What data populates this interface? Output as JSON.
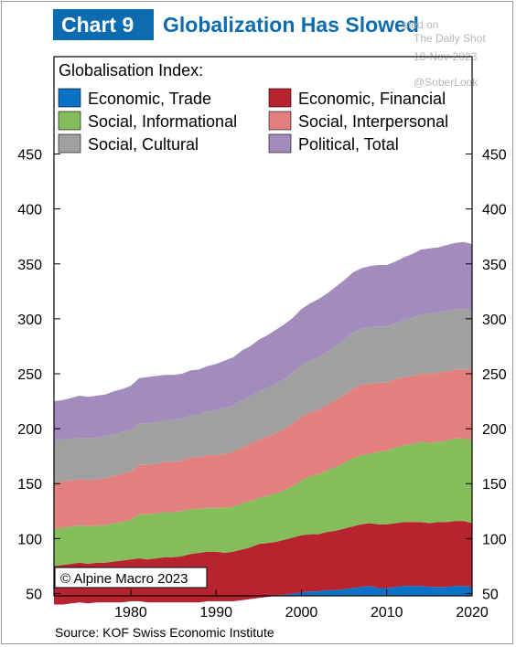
{
  "header": {
    "badge": "Chart 9",
    "title": "Globalization Has Slowed"
  },
  "watermark": {
    "line1": "sted on",
    "line2": "The Daily Shot",
    "line3": "18-Nov-2023",
    "line4": "@SoberLook"
  },
  "source": "Source: KOF Swiss Economic Institute",
  "copyright": "© Alpine Macro 2023",
  "chart_data": {
    "type": "area",
    "stacked": true,
    "title": "Globalization Has Slowed",
    "legend_title": "Globalisation Index:",
    "legend_position": "top-left",
    "grid": false,
    "xlim": [
      1971,
      2020
    ],
    "ylim": [
      0,
      450
    ],
    "x_ticks": [
      1980,
      1990,
      2000,
      2010,
      2020
    ],
    "y_ticks": [
      50,
      100,
      150,
      200,
      250,
      300,
      350,
      400,
      450
    ],
    "x": [
      1971,
      1972,
      1973,
      1974,
      1975,
      1976,
      1977,
      1978,
      1979,
      1980,
      1981,
      1982,
      1983,
      1984,
      1985,
      1986,
      1987,
      1988,
      1989,
      1990,
      1991,
      1992,
      1993,
      1994,
      1995,
      1996,
      1997,
      1998,
      1999,
      2000,
      2001,
      2002,
      2003,
      2004,
      2005,
      2006,
      2007,
      2008,
      2009,
      2010,
      2011,
      2012,
      2013,
      2014,
      2015,
      2016,
      2017,
      2018,
      2019,
      2020
    ],
    "series": [
      {
        "name": "Economic, Trade",
        "color": "#0a72c6",
        "values": [
          40,
          40,
          41,
          42,
          41,
          42,
          42,
          42,
          42,
          43,
          43,
          42,
          42,
          42,
          42,
          42,
          42,
          42,
          43,
          43,
          43,
          43,
          44,
          45,
          46,
          47,
          48,
          49,
          50,
          51,
          52,
          52,
          53,
          53,
          54,
          55,
          56,
          57,
          55,
          55,
          56,
          57,
          57,
          57,
          56,
          56,
          56,
          57,
          57,
          56
        ]
      },
      {
        "name": "Economic, Financial",
        "color": "#b82330",
        "values": [
          35,
          36,
          36,
          36,
          36,
          36,
          36,
          37,
          38,
          38,
          39,
          39,
          40,
          41,
          41,
          42,
          44,
          45,
          45,
          45,
          44,
          45,
          46,
          47,
          49,
          49,
          49,
          50,
          51,
          52,
          52,
          52,
          53,
          54,
          55,
          56,
          57,
          57,
          58,
          58,
          58,
          58,
          58,
          58,
          58,
          59,
          59,
          59,
          59,
          58
        ]
      },
      {
        "name": "Social, Informational",
        "color": "#84bd5a",
        "values": [
          34,
          34,
          34,
          34,
          34,
          34,
          34,
          35,
          35,
          36,
          40,
          41,
          41,
          41,
          41,
          41,
          41,
          40,
          40,
          40,
          41,
          41,
          42,
          42,
          42,
          43,
          44,
          45,
          47,
          50,
          53,
          54,
          56,
          58,
          60,
          62,
          63,
          63,
          66,
          67,
          69,
          70,
          71,
          73,
          73,
          73,
          74,
          75,
          75,
          76
        ]
      },
      {
        "name": "Social, Interpersonal",
        "color": "#e2807f",
        "values": [
          42,
          42,
          42,
          42,
          42,
          42,
          43,
          43,
          44,
          44,
          45,
          45,
          45,
          46,
          46,
          46,
          47,
          47,
          48,
          48,
          49,
          50,
          51,
          52,
          53,
          54,
          55,
          56,
          57,
          58,
          58,
          59,
          60,
          61,
          62,
          63,
          64,
          64,
          63,
          62,
          62,
          62,
          62,
          62,
          63,
          63,
          63,
          63,
          63,
          64
        ]
      },
      {
        "name": "Social, Cultural",
        "color": "#a0a0a0",
        "values": [
          38,
          38,
          38,
          38,
          38,
          38,
          38,
          38,
          38,
          38,
          38,
          38,
          38,
          38,
          38,
          38,
          38,
          39,
          40,
          41,
          42,
          42,
          43,
          43,
          44,
          44,
          45,
          45,
          46,
          47,
          47,
          48,
          48,
          49,
          50,
          51,
          51,
          51,
          51,
          51,
          51,
          52,
          53,
          54,
          55,
          55,
          55,
          55,
          55,
          54
        ]
      },
      {
        "name": "Political, Total",
        "color": "#a48bbe",
        "values": [
          36,
          36,
          37,
          38,
          38,
          38,
          38,
          39,
          39,
          40,
          41,
          42,
          42,
          41,
          41,
          41,
          41,
          41,
          41,
          42,
          43,
          44,
          45,
          46,
          47,
          48,
          49,
          50,
          50,
          51,
          52,
          53,
          53,
          54,
          54,
          55,
          55,
          56,
          56,
          56,
          56,
          57,
          58,
          59,
          59,
          59,
          60,
          60,
          61,
          60
        ]
      }
    ]
  }
}
